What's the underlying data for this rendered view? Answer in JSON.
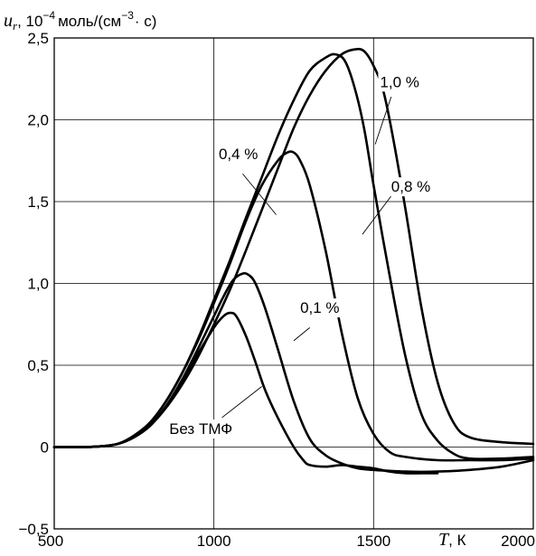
{
  "chart_data": {
    "type": "line",
    "title": "",
    "ylabel": {
      "var": "u",
      "sub": "r",
      "rest": ", 10",
      "exp": "−4",
      "unit_a": "моль/(см",
      "unit_exp": "−3",
      "unit_b": "· с)"
    },
    "xlabel": {
      "var": "T",
      "unit": ", К"
    },
    "xlim": [
      500,
      2000
    ],
    "ylim": [
      -0.5,
      2.5
    ],
    "xticks": [
      500,
      1000,
      1500,
      2000
    ],
    "xtick_labels": [
      "500",
      "1000",
      "1500",
      "2000"
    ],
    "yticks": [
      -0.5,
      0,
      0.5,
      1.0,
      1.5,
      2.0,
      2.5
    ],
    "ytick_labels": [
      "−0,5",
      "0",
      "0,5",
      "1,0",
      "1,5",
      "2,0",
      "2,5"
    ],
    "grid": true,
    "series": [
      {
        "name": "Без ТМФ",
        "x": [
          500,
          600,
          650,
          700,
          750,
          800,
          850,
          900,
          950,
          1000,
          1030,
          1050,
          1070,
          1100,
          1130,
          1160,
          1200,
          1250,
          1280,
          1300,
          1350,
          1400,
          1450,
          1500,
          1550,
          1600,
          1650,
          1700
        ],
        "y": [
          0,
          0,
          0.005,
          0.02,
          0.06,
          0.13,
          0.25,
          0.4,
          0.57,
          0.73,
          0.8,
          0.82,
          0.8,
          0.68,
          0.52,
          0.35,
          0.18,
          0,
          -0.08,
          -0.11,
          -0.12,
          -0.11,
          -0.12,
          -0.13,
          -0.15,
          -0.16,
          -0.16,
          -0.16
        ]
      },
      {
        "name": "0,1 %",
        "x": [
          500,
          600,
          650,
          700,
          750,
          800,
          850,
          900,
          950,
          1000,
          1030,
          1060,
          1090,
          1110,
          1130,
          1160,
          1200,
          1250,
          1300,
          1350,
          1400,
          1450,
          1500,
          1600,
          1700,
          1800,
          1900,
          2000
        ],
        "y": [
          0,
          0,
          0.005,
          0.02,
          0.06,
          0.13,
          0.25,
          0.41,
          0.6,
          0.8,
          0.92,
          1.02,
          1.06,
          1.05,
          1.0,
          0.85,
          0.6,
          0.28,
          0.05,
          -0.05,
          -0.1,
          -0.13,
          -0.14,
          -0.15,
          -0.15,
          -0.14,
          -0.12,
          -0.08
        ]
      },
      {
        "name": "0,4 %",
        "x": [
          500,
          600,
          650,
          700,
          750,
          800,
          850,
          900,
          950,
          1000,
          1050,
          1100,
          1150,
          1200,
          1230,
          1250,
          1270,
          1300,
          1350,
          1400,
          1450,
          1500,
          1550,
          1600,
          1700,
          1800,
          1900,
          2000
        ],
        "y": [
          0,
          0,
          0.005,
          0.02,
          0.07,
          0.15,
          0.28,
          0.45,
          0.65,
          0.88,
          1.12,
          1.38,
          1.6,
          1.75,
          1.8,
          1.8,
          1.75,
          1.6,
          1.2,
          0.7,
          0.3,
          0.08,
          -0.03,
          -0.06,
          -0.08,
          -0.08,
          -0.08,
          -0.07
        ]
      },
      {
        "name": "0,8 %",
        "x": [
          500,
          600,
          650,
          700,
          750,
          800,
          850,
          900,
          950,
          1000,
          1050,
          1100,
          1150,
          1200,
          1250,
          1300,
          1350,
          1380,
          1410,
          1440,
          1470,
          1500,
          1550,
          1600,
          1650,
          1700,
          1750,
          1800,
          1900,
          2000
        ],
        "y": [
          0,
          0,
          0.005,
          0.02,
          0.07,
          0.15,
          0.28,
          0.45,
          0.66,
          0.9,
          1.14,
          1.4,
          1.65,
          1.9,
          2.12,
          2.3,
          2.38,
          2.4,
          2.36,
          2.2,
          1.95,
          1.6,
          1.05,
          0.55,
          0.2,
          0.04,
          -0.04,
          -0.07,
          -0.07,
          -0.06
        ]
      },
      {
        "name": "1,0 %",
        "x": [
          500,
          600,
          650,
          700,
          750,
          800,
          850,
          900,
          950,
          1000,
          1050,
          1100,
          1150,
          1200,
          1250,
          1300,
          1350,
          1400,
          1440,
          1470,
          1500,
          1530,
          1560,
          1600,
          1650,
          1700,
          1750,
          1800,
          1900,
          2000
        ],
        "y": [
          0,
          0,
          0.005,
          0.02,
          0.06,
          0.13,
          0.24,
          0.38,
          0.55,
          0.75,
          0.96,
          1.2,
          1.45,
          1.7,
          1.95,
          2.15,
          2.3,
          2.4,
          2.43,
          2.42,
          2.33,
          2.18,
          1.9,
          1.45,
          0.85,
          0.4,
          0.15,
          0.06,
          0.03,
          0.02
        ]
      }
    ],
    "annotations": [
      {
        "text": "1,0 %",
        "series": "1,0 %"
      },
      {
        "text": "0,8 %",
        "series": "0,8 %"
      },
      {
        "text": "0,4 %",
        "series": "0,4 %"
      },
      {
        "text": "0,1 %",
        "series": "0,1 %"
      },
      {
        "text": "Без  ТМФ",
        "series": "Без ТМФ"
      }
    ]
  }
}
